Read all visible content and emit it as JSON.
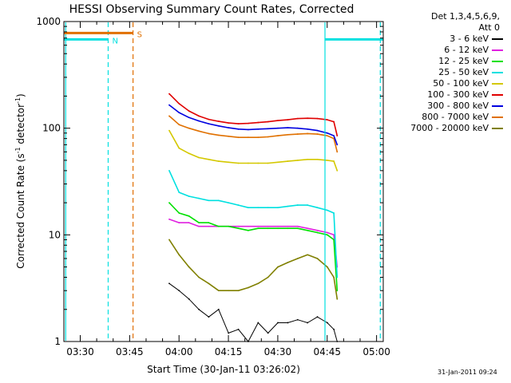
{
  "chart_data": {
    "type": "line",
    "title": "HESSI Observing Summary Count Rates, Corrected",
    "xlabel": "Start Time (30-Jan-11 03:26:02)",
    "ylabel": "Corrected Count Rate (s",
    "ylabel_sup1": "-1",
    "ylabel_mid": " detector",
    "ylabel_sup2": "-1",
    "ylabel_end": ")",
    "y_scale": "log",
    "ylim": [
      1,
      1000
    ],
    "x_range_minutes": [
      -1.0,
      96.0
    ],
    "x_ticks": [
      {
        "label": "03:30",
        "minutes": 3.97
      },
      {
        "label": "03:45",
        "minutes": 18.97
      },
      {
        "label": "04:00",
        "minutes": 33.97
      },
      {
        "label": "04:15",
        "minutes": 48.97
      },
      {
        "label": "04:30",
        "minutes": 63.97
      },
      {
        "label": "04:45",
        "minutes": 78.97
      },
      {
        "label": "05:00",
        "minutes": 93.97
      }
    ],
    "y_ticks": [
      {
        "label": "1",
        "value": 1
      },
      {
        "label": "10",
        "value": 10
      },
      {
        "label": "100",
        "value": 100
      },
      {
        "label": "1000",
        "value": 1000
      }
    ],
    "grid": false,
    "legend_position": "right",
    "legend_header": [
      "Det 1,3,4,5,6,9,",
      "Att 0"
    ],
    "series": [
      {
        "name": "3 - 6 keV",
        "color": "#000000",
        "x": [
          31,
          34,
          37,
          40,
          43,
          46,
          49,
          52,
          55,
          58,
          61,
          64,
          67,
          70,
          73,
          76,
          79,
          81,
          82
        ],
        "y": [
          3.5,
          3,
          2.5,
          2,
          1.7,
          2,
          1.2,
          1.3,
          1,
          1.5,
          1.2,
          1.5,
          1.5,
          1.6,
          1.5,
          1.7,
          1.5,
          1.3,
          1
        ]
      },
      {
        "name": "6 - 12 keV",
        "color": "#e020e0",
        "x": [
          31,
          34,
          37,
          40,
          43,
          46,
          49,
          52,
          55,
          58,
          61,
          64,
          67,
          70,
          73,
          76,
          79,
          81,
          82
        ],
        "y": [
          14,
          13,
          13,
          12,
          12,
          12,
          12,
          12,
          12,
          12,
          12,
          12,
          12,
          12,
          11.5,
          11,
          10.5,
          10,
          5
        ]
      },
      {
        "name": "12 - 25 keV",
        "color": "#00e000",
        "x": [
          31,
          34,
          37,
          40,
          43,
          46,
          49,
          52,
          55,
          58,
          61,
          64,
          67,
          70,
          73,
          76,
          79,
          81,
          82
        ],
        "y": [
          20,
          16,
          15,
          13,
          13,
          12,
          12,
          11.5,
          11,
          11.5,
          11.5,
          11.5,
          11.5,
          11.5,
          11,
          10.5,
          10,
          9,
          3
        ]
      },
      {
        "name": "25 - 50 keV",
        "color": "#00e0e0",
        "x": [
          31,
          34,
          37,
          40,
          43,
          46,
          49,
          52,
          55,
          58,
          61,
          64,
          67,
          70,
          73,
          76,
          79,
          81,
          82
        ],
        "y": [
          40,
          25,
          23,
          22,
          21,
          21,
          20,
          19,
          18,
          18,
          18,
          18,
          18.5,
          19,
          19,
          18,
          17,
          16,
          4
        ]
      },
      {
        "name": "50 - 100 keV",
        "color": "#d4c800",
        "x": [
          31,
          34,
          37,
          40,
          43,
          46,
          49,
          52,
          55,
          58,
          61,
          64,
          67,
          70,
          73,
          76,
          79,
          81,
          82
        ],
        "y": [
          95,
          65,
          58,
          53,
          51,
          49,
          48,
          47,
          47,
          47,
          47,
          48,
          49,
          50,
          51,
          51,
          50,
          49,
          40
        ]
      },
      {
        "name": "100 - 300 keV",
        "color": "#e00000",
        "x": [
          31,
          34,
          37,
          40,
          43,
          46,
          49,
          52,
          55,
          58,
          61,
          64,
          67,
          70,
          73,
          76,
          79,
          81,
          82
        ],
        "y": [
          210,
          170,
          145,
          130,
          121,
          116,
          112,
          110,
          111,
          113,
          115,
          118,
          120,
          123,
          124,
          123,
          120,
          115,
          85
        ]
      },
      {
        "name": "300 - 800 keV",
        "color": "#0000e0",
        "x": [
          31,
          34,
          37,
          40,
          43,
          46,
          49,
          52,
          55,
          58,
          61,
          64,
          67,
          70,
          73,
          76,
          79,
          81,
          82
        ],
        "y": [
          165,
          140,
          126,
          117,
          110,
          105,
          101,
          98,
          97,
          98,
          99,
          100,
          101,
          100,
          98,
          95,
          90,
          85,
          70
        ]
      },
      {
        "name": "800 - 7000 keV",
        "color": "#e07000",
        "x": [
          31,
          34,
          37,
          40,
          43,
          46,
          49,
          52,
          55,
          58,
          61,
          64,
          67,
          70,
          73,
          76,
          79,
          81,
          82
        ],
        "y": [
          130,
          108,
          100,
          94,
          89,
          86,
          84,
          82,
          82,
          82,
          83,
          85,
          87,
          88,
          89,
          88,
          85,
          80,
          60
        ]
      },
      {
        "name": "7000 - 20000 keV",
        "color": "#808000",
        "x": [
          31,
          34,
          37,
          40,
          43,
          46,
          49,
          52,
          55,
          58,
          61,
          64,
          67,
          70,
          73,
          76,
          79,
          81,
          82
        ],
        "y": [
          9,
          6.5,
          5,
          4,
          3.5,
          3,
          3,
          3,
          3.2,
          3.5,
          4,
          5,
          5.5,
          6,
          6.5,
          6,
          5,
          4,
          2.5
        ]
      }
    ],
    "annotations": [
      {
        "text": "N",
        "color": "#00e0e0",
        "kind": "night",
        "segments": [
          [
            -1,
            12.45
          ],
          [
            78.3,
            96
          ]
        ],
        "y": 680
      },
      {
        "text": "S",
        "color": "#e07000",
        "kind": "saa",
        "segments": [
          [
            -1,
            20.0
          ]
        ],
        "y": 780
      }
    ],
    "vlines": [
      {
        "x": -0.45,
        "color": "#00e0e0",
        "style": "solid"
      },
      {
        "x": 12.45,
        "color": "#00e0e0",
        "style": "dashed"
      },
      {
        "x": 20.0,
        "color": "#e07000",
        "style": "dashed"
      },
      {
        "x": 78.3,
        "color": "#00e0e0",
        "style": "solid"
      },
      {
        "x": 95.1,
        "color": "#00e0e0",
        "style": "dashed"
      }
    ]
  },
  "footer": {
    "timestamp": "31-Jan-2011 09:24"
  }
}
